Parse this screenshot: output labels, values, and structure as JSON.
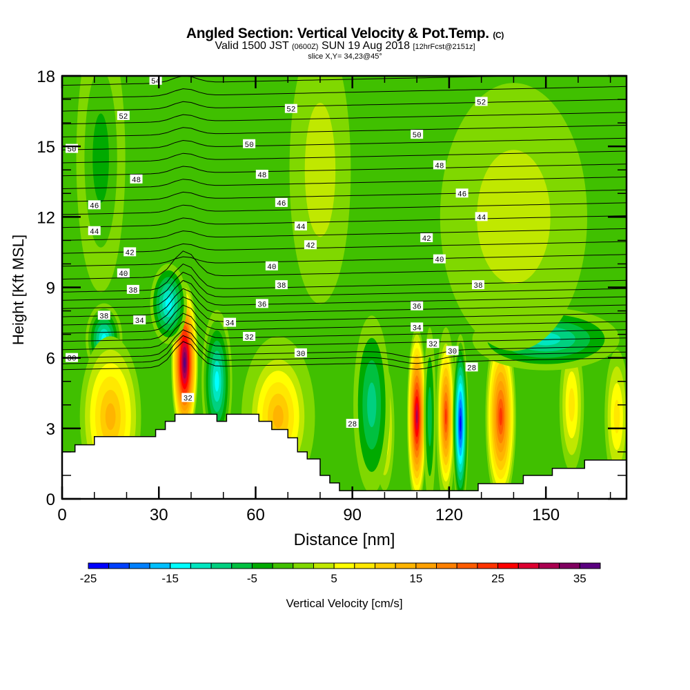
{
  "header": {
    "title_main": "Angled Section: Vertical Velocity & Pot.Temp.",
    "title_units": "(C)",
    "valid_a": "Valid 1500 JST",
    "valid_b": "(0600Z)",
    "valid_c": "SUN 19 Aug 2018",
    "valid_d": "[12hrFcst@2151z]",
    "slice": "slice X,Y= 34,23@45°"
  },
  "chart_data": {
    "type": "heatmap",
    "title": "Angled Section: Vertical Velocity & Pot.Temp. (C)",
    "xlabel": "Distance [nm]",
    "ylabel": "Height [Kft MSL]",
    "xlim": [
      0,
      175
    ],
    "ylim": [
      0,
      18
    ],
    "xticks": [
      "0",
      "30",
      "60",
      "90",
      "120",
      "150"
    ],
    "xtick_values": [
      0,
      30,
      60,
      90,
      120,
      150
    ],
    "yticks": [
      "0",
      "3",
      "6",
      "9",
      "12",
      "15",
      "18"
    ],
    "ytick_values": [
      0,
      3,
      6,
      9,
      12,
      15,
      18
    ],
    "colorbar": {
      "label": "Vertical Velocity [cm/s]",
      "tick_labels": [
        "-25",
        "-15",
        "-5",
        "5",
        "15",
        "25",
        "35"
      ],
      "tick_values": [
        -25,
        -15,
        -5,
        5,
        15,
        25,
        35
      ],
      "min": -25,
      "max": 37.5,
      "step": 2.5,
      "colors": [
        "#0000ff",
        "#0040ff",
        "#0080ff",
        "#00bfff",
        "#00ffff",
        "#00e6c0",
        "#00d080",
        "#00c040",
        "#00aa00",
        "#40c000",
        "#80d800",
        "#c0e800",
        "#ffff00",
        "#ffe800",
        "#ffcc00",
        "#ffb400",
        "#ffa000",
        "#ff8000",
        "#ff5c00",
        "#ff3300",
        "#ff0000",
        "#dd0030",
        "#aa0050",
        "#800060",
        "#5a0080"
      ]
    },
    "background_value": 0,
    "velocity_cells": [
      {
        "x": 38,
        "z": 5.8,
        "value": 36,
        "sx": 2.2,
        "sz": 1.8
      },
      {
        "x": 48,
        "z": 5.0,
        "value": -15,
        "sx": 2.5,
        "sz": 1.6
      },
      {
        "x": 13,
        "z": 6.8,
        "value": -14,
        "sx": 3.0,
        "sz": 0.8
      },
      {
        "x": 33,
        "z": 8.3,
        "value": -13,
        "sx": 3.0,
        "sz": 0.9
      },
      {
        "x": 15,
        "z": 3.5,
        "value": 13,
        "sx": 5.0,
        "sz": 1.8
      },
      {
        "x": 67,
        "z": 3.5,
        "value": 14,
        "sx": 6.0,
        "sz": 1.8
      },
      {
        "x": 110,
        "z": 3.5,
        "value": 30,
        "sx": 1.6,
        "sz": 2.0
      },
      {
        "x": 114,
        "z": 3.5,
        "value": -6,
        "sx": 1.0,
        "sz": 2.0
      },
      {
        "x": 119,
        "z": 3.5,
        "value": 24,
        "sx": 1.6,
        "sz": 2.0
      },
      {
        "x": 123.5,
        "z": 3.2,
        "value": -24,
        "sx": 1.3,
        "sz": 2.0
      },
      {
        "x": 136,
        "z": 3.5,
        "value": 23,
        "sx": 2.5,
        "sz": 2.0
      },
      {
        "x": 100,
        "z": 3.0,
        "value": 8,
        "sx": 1.6,
        "sz": 1.4
      },
      {
        "x": 96,
        "z": 4.0,
        "value": -8,
        "sx": 3.0,
        "sz": 2.0
      },
      {
        "x": 158,
        "z": 4.0,
        "value": 8,
        "sx": 2.0,
        "sz": 1.5
      },
      {
        "x": 172,
        "z": 3.5,
        "value": 8,
        "sx": 2.0,
        "sz": 1.5
      },
      {
        "x": 150,
        "z": 6.8,
        "value": -11,
        "sx": 12.0,
        "sz": 0.7
      },
      {
        "x": 12,
        "z": 14.5,
        "value": -5,
        "sx": 4.0,
        "sz": 3.0
      },
      {
        "x": 80,
        "z": 14,
        "value": 3,
        "sx": 5.0,
        "sz": 3.0
      },
      {
        "x": 140,
        "z": 12,
        "value": 3,
        "sx": 12.0,
        "sz": 3.0
      }
    ],
    "terrain_height_kft": [
      {
        "x": 0,
        "z": 2.0
      },
      {
        "x": 4,
        "z": 2.3
      },
      {
        "x": 10,
        "z": 2.65
      },
      {
        "x": 29,
        "z": 2.95
      },
      {
        "x": 32,
        "z": 3.3
      },
      {
        "x": 35,
        "z": 3.6
      },
      {
        "x": 48,
        "z": 3.3
      },
      {
        "x": 51,
        "z": 3.6
      },
      {
        "x": 61,
        "z": 3.3
      },
      {
        "x": 65,
        "z": 2.95
      },
      {
        "x": 70,
        "z": 2.6
      },
      {
        "x": 73,
        "z": 2.0
      },
      {
        "x": 76,
        "z": 1.7
      },
      {
        "x": 80,
        "z": 1.0
      },
      {
        "x": 83,
        "z": 0.68
      },
      {
        "x": 86,
        "z": 0.35
      },
      {
        "x": 129,
        "z": 0.65
      },
      {
        "x": 143,
        "z": 1.0
      },
      {
        "x": 152,
        "z": 1.3
      },
      {
        "x": 162,
        "z": 1.65
      },
      {
        "x": 175,
        "z": 1.65
      }
    ],
    "isentropes": {
      "label": "Pot.Temp. (C)",
      "labels": [
        {
          "text": "54",
          "x": 29,
          "z": 17.8
        },
        {
          "text": "52",
          "x": 19,
          "z": 16.3
        },
        {
          "text": "52",
          "x": 71,
          "z": 16.6
        },
        {
          "text": "52",
          "x": 130,
          "z": 16.9
        },
        {
          "text": "50",
          "x": 3,
          "z": 14.9
        },
        {
          "text": "50",
          "x": 58,
          "z": 15.1
        },
        {
          "text": "50",
          "x": 110,
          "z": 15.5
        },
        {
          "text": "48",
          "x": 23,
          "z": 13.6
        },
        {
          "text": "48",
          "x": 62,
          "z": 13.8
        },
        {
          "text": "48",
          "x": 117,
          "z": 14.2
        },
        {
          "text": "46",
          "x": 10,
          "z": 12.5
        },
        {
          "text": "46",
          "x": 68,
          "z": 12.6
        },
        {
          "text": "46",
          "x": 124,
          "z": 13.0
        },
        {
          "text": "44",
          "x": 10,
          "z": 11.4
        },
        {
          "text": "44",
          "x": 74,
          "z": 11.6
        },
        {
          "text": "44",
          "x": 130,
          "z": 12.0
        },
        {
          "text": "42",
          "x": 21,
          "z": 10.5
        },
        {
          "text": "42",
          "x": 77,
          "z": 10.8
        },
        {
          "text": "42",
          "x": 113,
          "z": 11.1
        },
        {
          "text": "40",
          "x": 19,
          "z": 9.6
        },
        {
          "text": "40",
          "x": 65,
          "z": 9.9
        },
        {
          "text": "40",
          "x": 117,
          "z": 10.2
        },
        {
          "text": "38",
          "x": 22,
          "z": 8.9
        },
        {
          "text": "38",
          "x": 68,
          "z": 9.1
        },
        {
          "text": "38",
          "x": 129,
          "z": 9.1
        },
        {
          "text": "38",
          "x": 13,
          "z": 7.8
        },
        {
          "text": "36",
          "x": 62,
          "z": 8.3
        },
        {
          "text": "36",
          "x": 110,
          "z": 8.2
        },
        {
          "text": "34",
          "x": 24,
          "z": 7.6
        },
        {
          "text": "34",
          "x": 52,
          "z": 7.5
        },
        {
          "text": "34",
          "x": 110,
          "z": 7.3
        },
        {
          "text": "32",
          "x": 58,
          "z": 6.9
        },
        {
          "text": "32",
          "x": 115,
          "z": 6.6
        },
        {
          "text": "32",
          "x": 39,
          "z": 4.3
        },
        {
          "text": "30",
          "x": 74,
          "z": 6.2
        },
        {
          "text": "30",
          "x": 121,
          "z": 6.3
        },
        {
          "text": "30",
          "x": 3,
          "z": 6.0
        },
        {
          "text": "28",
          "x": 127,
          "z": 5.6
        },
        {
          "text": "28",
          "x": 90,
          "z": 3.2
        }
      ]
    }
  }
}
